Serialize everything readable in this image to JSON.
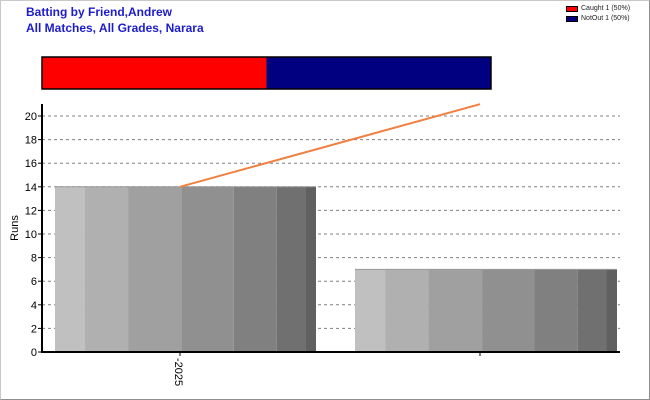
{
  "title": {
    "line1": "Batting by Friend,Andrew",
    "line2": "All Matches, All Grades, Narara"
  },
  "legend": [
    {
      "label": "Caught 1 (50%)",
      "color": "#ff0000"
    },
    {
      "label": "NotOut 1 (50%)",
      "color": "#000080"
    }
  ],
  "colors": {
    "trend_line": "#f08040",
    "bar_shades": [
      "#c0c0c0",
      "#b0b0b0",
      "#a0a0a0",
      "#909090",
      "#808080",
      "#707070",
      "#606060"
    ]
  },
  "chart_data": {
    "type": "bar",
    "categories": [
      "2025",
      ""
    ],
    "values": [
      14,
      7
    ],
    "trend_line": {
      "x": [
        "2025",
        ""
      ],
      "y": [
        14,
        21
      ]
    },
    "dismissal_bar": [
      {
        "label": "Caught",
        "count": 1,
        "percent": 50,
        "color": "#ff0000"
      },
      {
        "label": "NotOut",
        "count": 1,
        "percent": 50,
        "color": "#000080"
      }
    ],
    "title": "Batting by Friend,Andrew",
    "xlabel": "",
    "ylabel": "Runs",
    "ylim": [
      0,
      21
    ],
    "yticks": [
      0,
      2,
      4,
      6,
      8,
      10,
      12,
      14,
      16,
      18,
      20
    ],
    "grid": true,
    "legend_position": "top-right"
  }
}
